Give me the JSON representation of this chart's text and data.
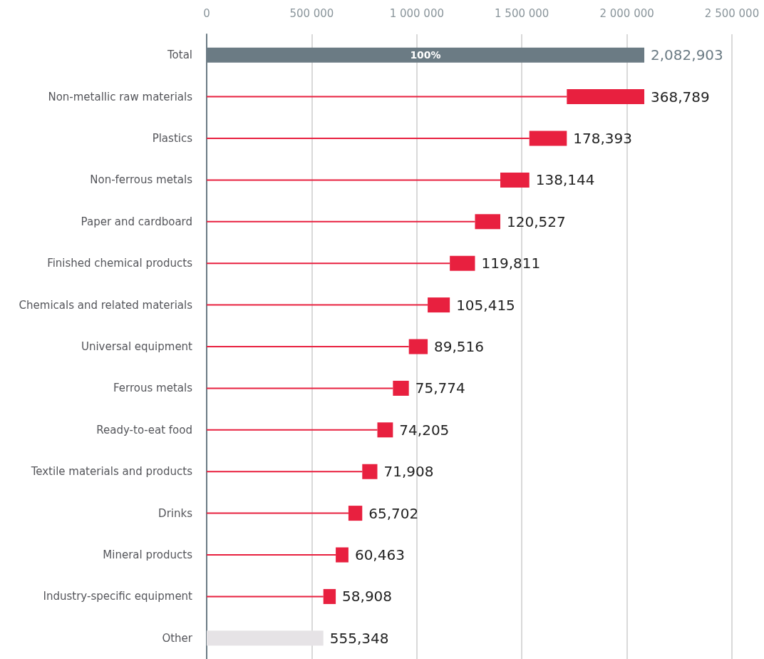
{
  "chart_data": {
    "type": "bar",
    "orientation": "horizontal",
    "stacked": true,
    "categories": [
      "Total",
      "Non-metallic raw materials",
      "Plastics",
      "Non-ferrous metals",
      "Paper and cardboard",
      "Finished chemical products",
      "Chemicals and related materials",
      "Universal equipment",
      "Ferrous metals",
      "Ready-to-eat food",
      "Textile materials and products",
      "Drinks",
      "Mineral products",
      "Industry-specific equipment",
      "Other"
    ],
    "series": [
      {
        "color": "#e8203f",
        "values": [
          null,
          1714114,
          1535721,
          1397577,
          1277050,
          1157239,
          1051824,
          962308,
          886534,
          812329,
          740421,
          674719,
          614256,
          555348,
          null
        ]
      },
      {
        "colors": [
          "#6b7b84",
          "#e8203f",
          "#e8203f",
          "#e8203f",
          "#e8203f",
          "#e8203f",
          "#e8203f",
          "#e8203f",
          "#e8203f",
          "#e8203f",
          "#e8203f",
          "#e8203f",
          "#e8203f",
          "#e8203f",
          "#e6e3e6"
        ],
        "values": [
          2082903,
          368789,
          178393,
          138144,
          120527,
          119811,
          105415,
          89516,
          75774,
          74205,
          71908,
          65702,
          60463,
          58908,
          555348
        ],
        "value_labels": [
          "2,082,903",
          "368,789",
          "178,393",
          "138,144",
          "120,527",
          "119,811",
          "105,415",
          "89,516",
          "75,774",
          "74,205",
          "71,908",
          "65,702",
          "60,463",
          "58,908",
          "555,348"
        ]
      }
    ],
    "xlim": [
      0,
      2500000
    ],
    "xticks": [
      0,
      {
        "value": 500000,
        "label": "500 000"
      },
      {
        "value": 1000000,
        "label": "1 000 000"
      },
      {
        "value": 1500000,
        "label": "1 500 000"
      },
      {
        "value": 2000000,
        "label": "2 000 000"
      },
      {
        "value": 2500000,
        "label": "2 500 000"
      }
    ],
    "grid": "x",
    "annotations": [
      "100%"
    ]
  }
}
